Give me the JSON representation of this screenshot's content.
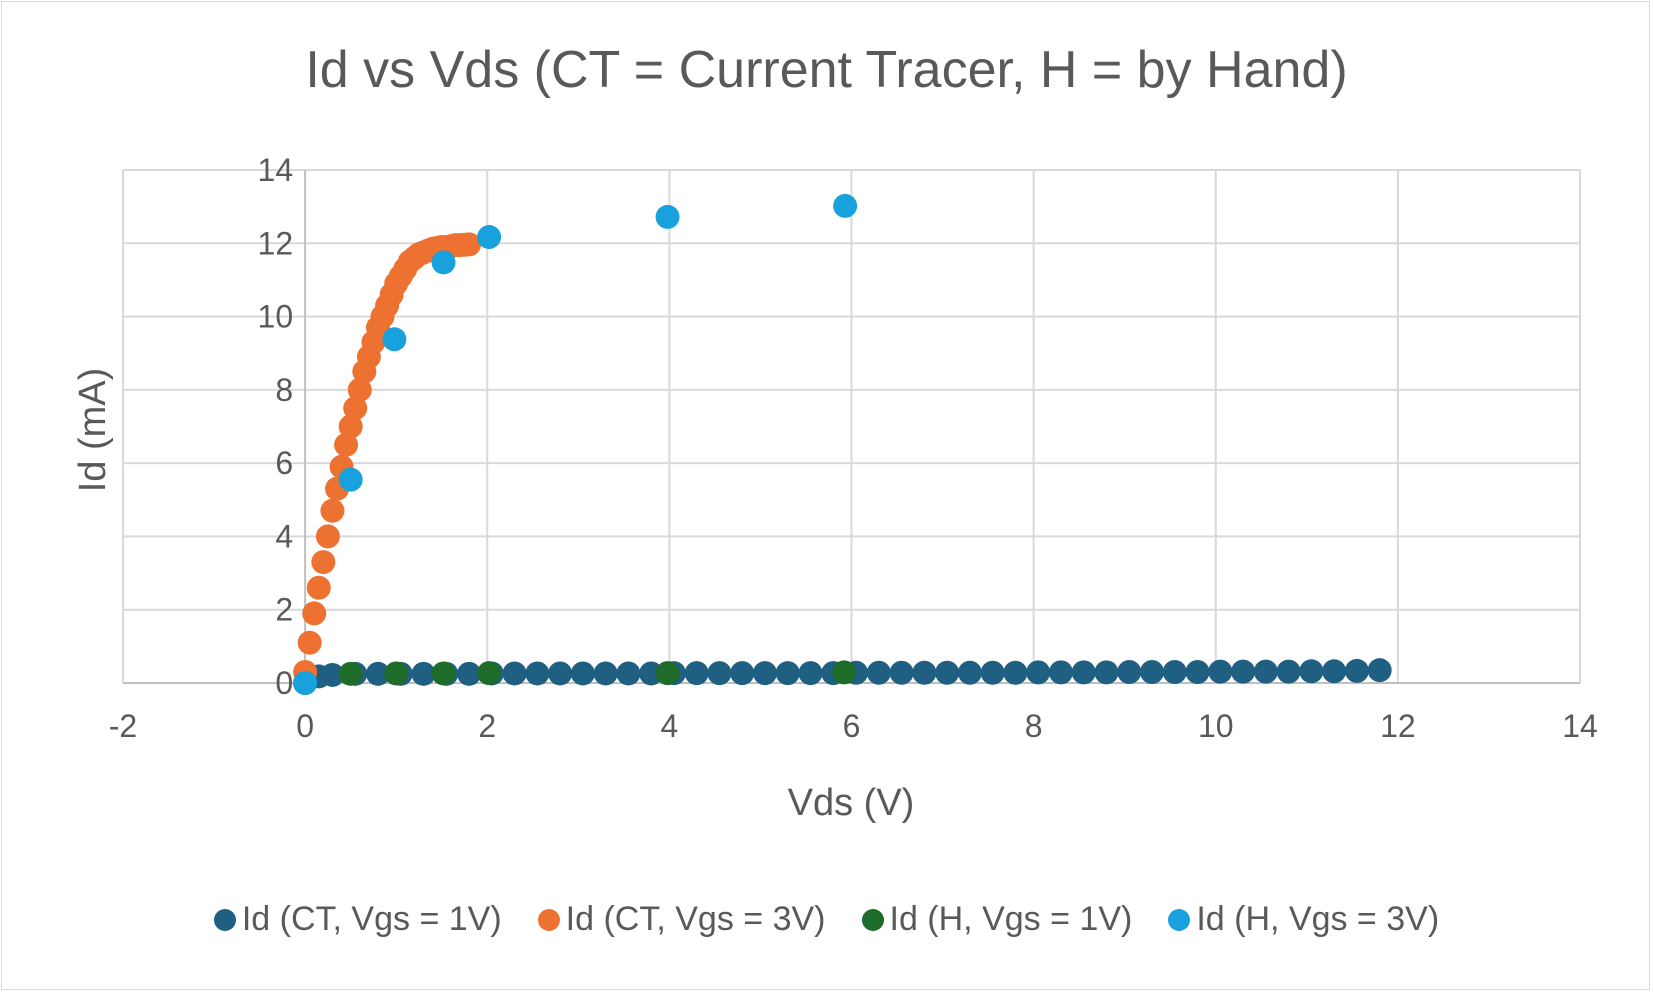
{
  "chart_data": {
    "type": "scatter",
    "title": "Id vs Vds (CT = Current Tracer, H = by Hand)",
    "xlabel": "Vds (V)",
    "ylabel": "Id (mA)",
    "xlim": [
      -2,
      14
    ],
    "ylim": [
      0,
      14
    ],
    "xticks": [
      -2,
      0,
      2,
      4,
      6,
      8,
      10,
      12,
      14
    ],
    "yticks": [
      0,
      2,
      4,
      6,
      8,
      10,
      12,
      14
    ],
    "grid": true,
    "legend_position": "bottom",
    "series": [
      {
        "name": "Id (CT, Vgs = 1V)",
        "color": "#1f5f82",
        "x": [
          0.0,
          0.15,
          0.3,
          0.55,
          0.8,
          1.05,
          1.3,
          1.55,
          1.8,
          2.05,
          2.3,
          2.55,
          2.8,
          3.05,
          3.3,
          3.55,
          3.8,
          4.05,
          4.3,
          4.55,
          4.8,
          5.05,
          5.3,
          5.55,
          5.8,
          6.05,
          6.3,
          6.55,
          6.8,
          7.05,
          7.3,
          7.55,
          7.8,
          8.05,
          8.3,
          8.55,
          8.8,
          9.05,
          9.3,
          9.55,
          9.8,
          10.05,
          10.3,
          10.55,
          10.8,
          11.05,
          11.3,
          11.55,
          11.8
        ],
        "y": [
          0.0,
          0.18,
          0.22,
          0.25,
          0.25,
          0.25,
          0.25,
          0.25,
          0.25,
          0.26,
          0.26,
          0.26,
          0.26,
          0.26,
          0.26,
          0.26,
          0.26,
          0.27,
          0.27,
          0.27,
          0.27,
          0.27,
          0.27,
          0.27,
          0.27,
          0.28,
          0.28,
          0.28,
          0.28,
          0.28,
          0.28,
          0.28,
          0.28,
          0.29,
          0.29,
          0.29,
          0.29,
          0.3,
          0.3,
          0.3,
          0.3,
          0.31,
          0.31,
          0.31,
          0.31,
          0.32,
          0.32,
          0.33,
          0.35
        ]
      },
      {
        "name": "Id (CT, Vgs = 3V)",
        "color": "#ed7131",
        "x": [
          0.0,
          0.05,
          0.1,
          0.15,
          0.2,
          0.25,
          0.3,
          0.35,
          0.4,
          0.45,
          0.5,
          0.55,
          0.6,
          0.65,
          0.7,
          0.75,
          0.8,
          0.85,
          0.9,
          0.95,
          1.0,
          1.05,
          1.1,
          1.15,
          1.2,
          1.25,
          1.3,
          1.35,
          1.4,
          1.45,
          1.5,
          1.55,
          1.6,
          1.65,
          1.7,
          1.75,
          1.8
        ],
        "y": [
          0.3,
          1.1,
          1.9,
          2.6,
          3.3,
          4.0,
          4.7,
          5.3,
          5.9,
          6.5,
          7.0,
          7.5,
          8.0,
          8.5,
          8.9,
          9.3,
          9.7,
          10.0,
          10.3,
          10.6,
          10.9,
          11.1,
          11.3,
          11.5,
          11.6,
          11.7,
          11.75,
          11.8,
          11.85,
          11.87,
          11.9,
          11.9,
          11.92,
          11.95,
          11.95,
          11.96,
          11.97
        ]
      },
      {
        "name": "Id (H, Vgs = 1V)",
        "color": "#1e6b2a",
        "x": [
          0.5,
          1.0,
          1.52,
          2.02,
          3.98,
          5.92
        ],
        "y": [
          0.25,
          0.26,
          0.26,
          0.27,
          0.27,
          0.29
        ]
      },
      {
        "name": "Id (H, Vgs = 3V)",
        "color": "#18a1dc",
        "x": [
          0.0,
          0.5,
          0.98,
          1.52,
          2.02,
          3.98,
          5.93
        ],
        "y": [
          0.0,
          5.55,
          9.38,
          11.48,
          12.17,
          12.72,
          13.02
        ]
      }
    ]
  }
}
